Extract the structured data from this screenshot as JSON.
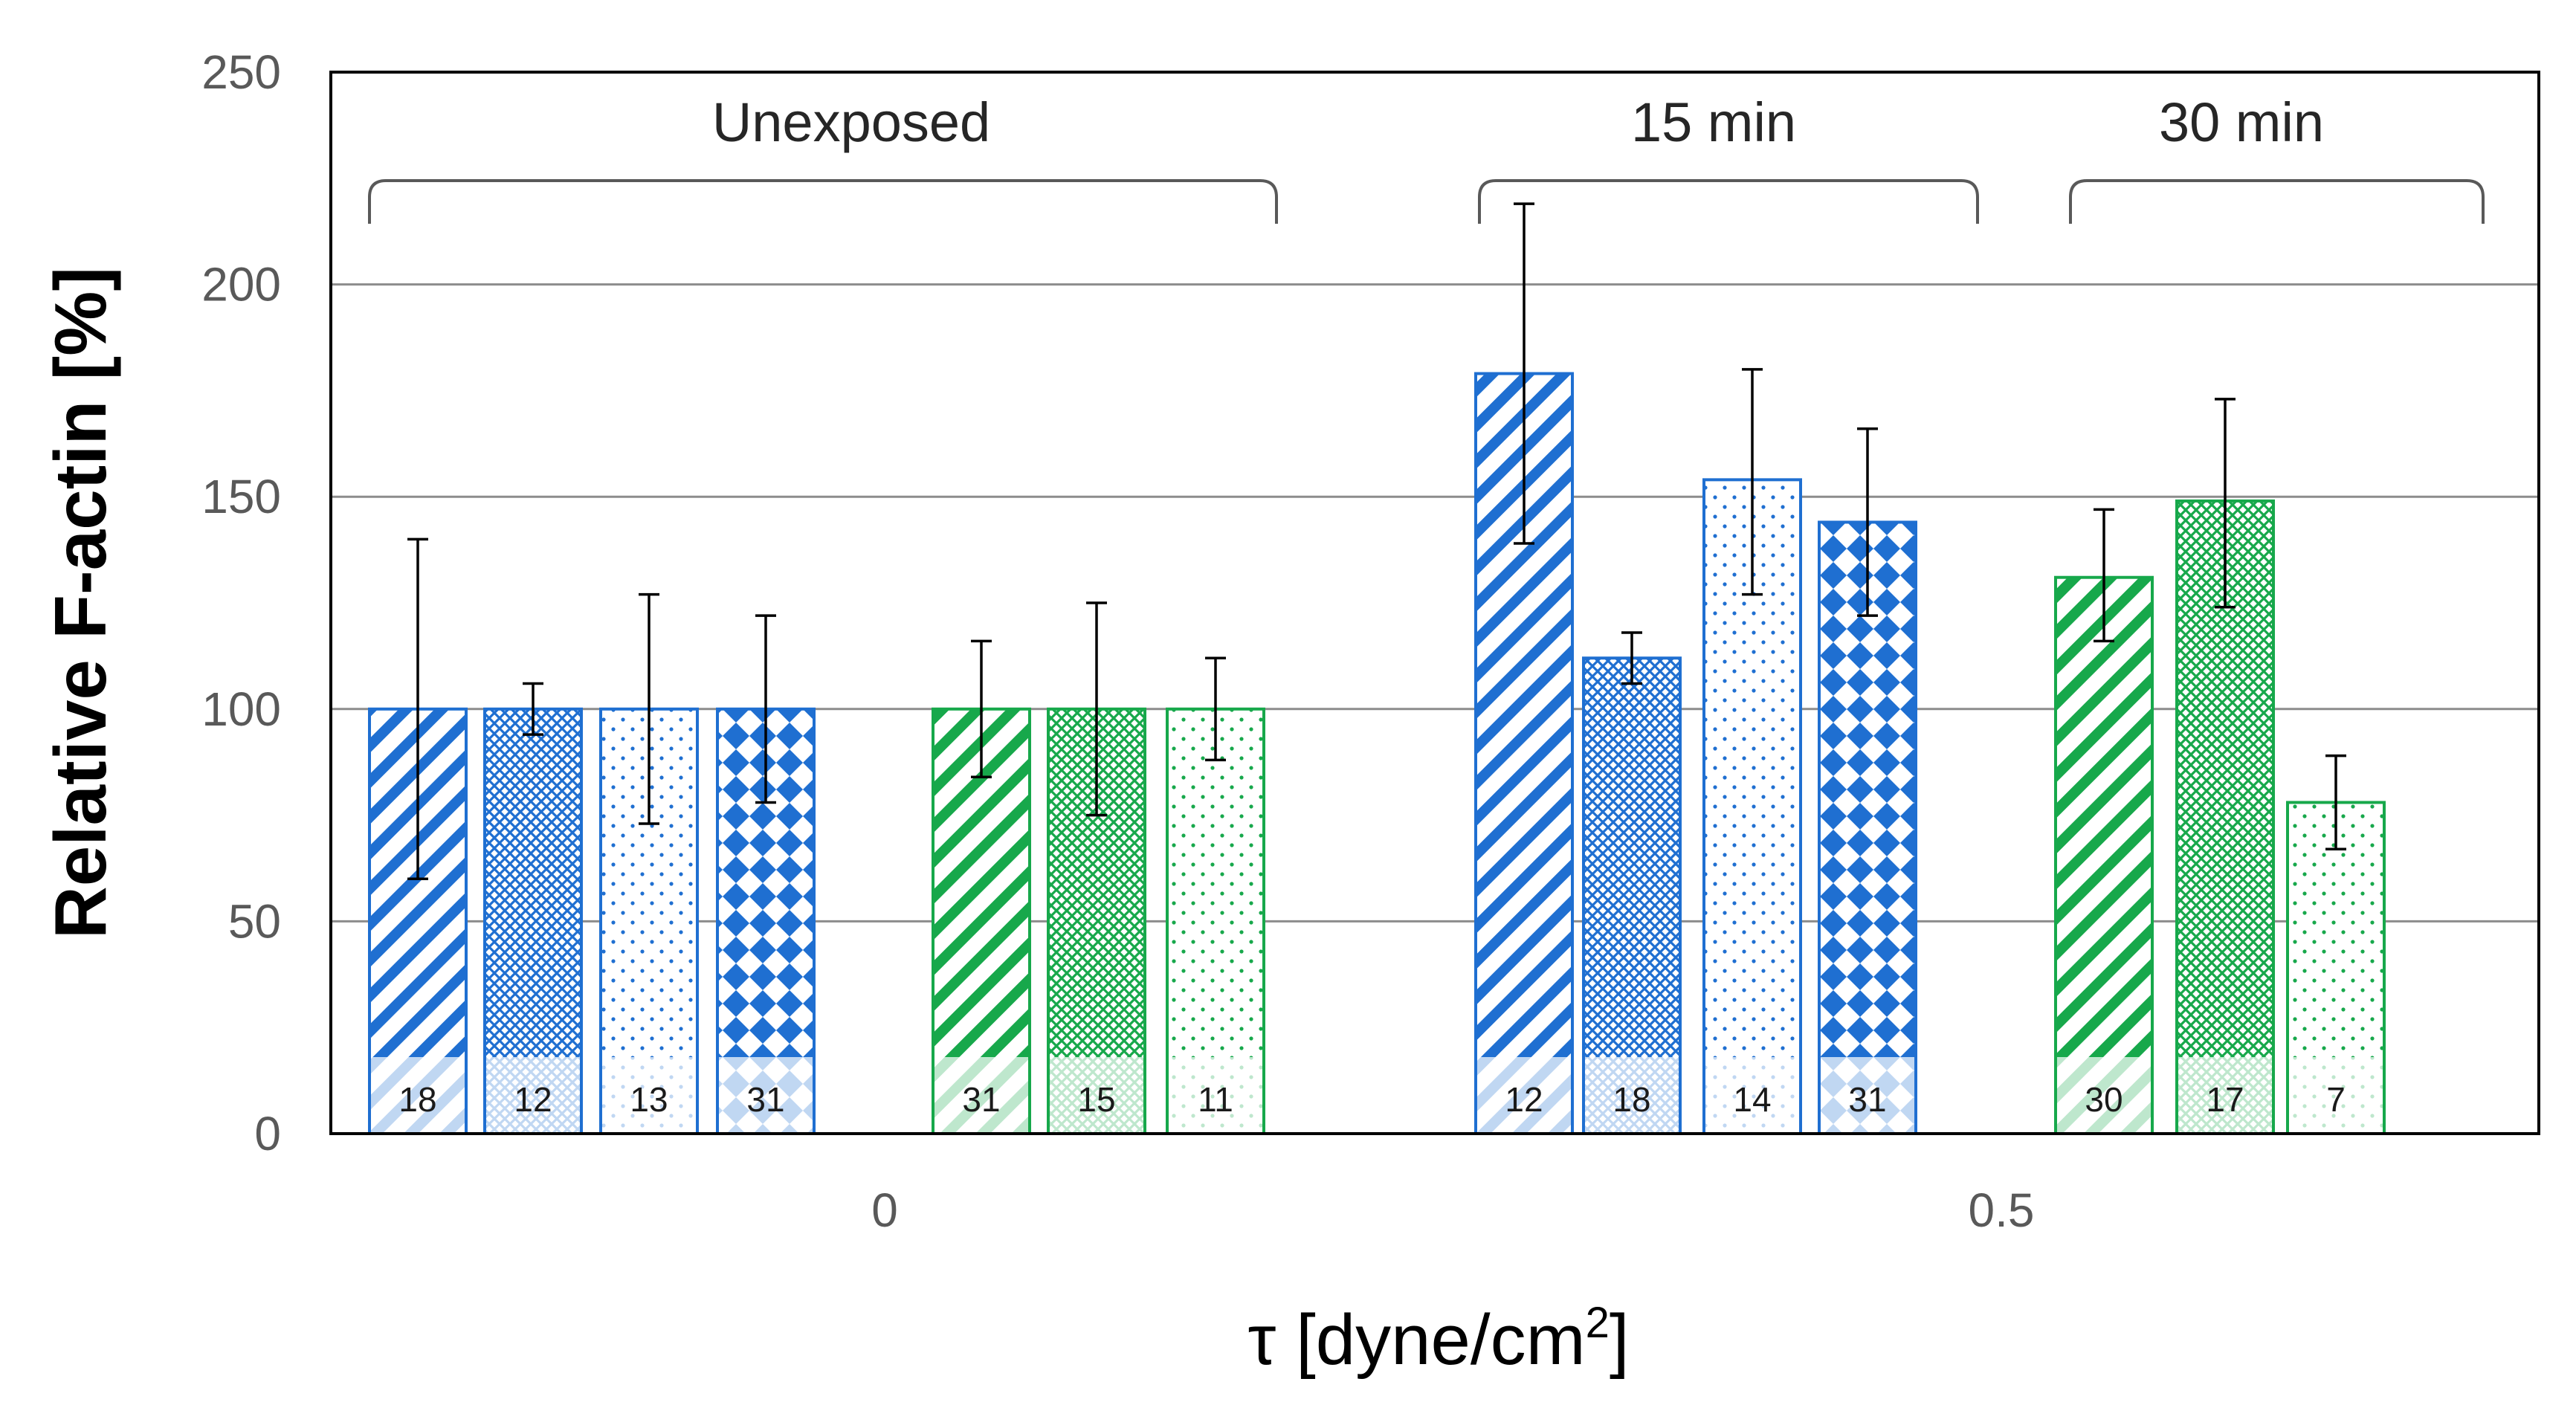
{
  "chart_data": {
    "type": "bar",
    "title": "",
    "xlabel": "τ [dyne/cm",
    "xlabel_superscript": "2",
    "xlabel_suffix": "]",
    "ylabel": "Relative F-actin [%]",
    "ylim": [
      0,
      250
    ],
    "yticks": [
      "0",
      "50",
      "100",
      "150",
      "200",
      "250"
    ],
    "xticks": [
      "0",
      "0.5"
    ],
    "grid": true,
    "colors": {
      "blue": "#1f6fd1",
      "green": "#17a84b",
      "axis": "#000000",
      "grid": "#8c8c8c",
      "error": "#000000"
    },
    "group_labels": [
      "Unexposed",
      "15 min",
      "30 min"
    ],
    "bars": [
      {
        "group": "Unexposed",
        "value": 100,
        "error_low": 60,
        "error_high": 140,
        "n": "18",
        "color": "blue",
        "pattern": "diag"
      },
      {
        "group": "Unexposed",
        "value": 100,
        "error_low": 94,
        "error_high": 106,
        "n": "12",
        "color": "blue",
        "pattern": "cross"
      },
      {
        "group": "Unexposed",
        "value": 100,
        "error_low": 73,
        "error_high": 127,
        "n": "13",
        "color": "blue",
        "pattern": "dots"
      },
      {
        "group": "Unexposed",
        "value": 100,
        "error_low": 78,
        "error_high": 122,
        "n": "31",
        "color": "blue",
        "pattern": "diamond"
      },
      {
        "group": "Unexposed",
        "value": 100,
        "error_low": 84,
        "error_high": 116,
        "n": "31",
        "color": "green",
        "pattern": "diag"
      },
      {
        "group": "Unexposed",
        "value": 100,
        "error_low": 75,
        "error_high": 125,
        "n": "15",
        "color": "green",
        "pattern": "cross"
      },
      {
        "group": "Unexposed",
        "value": 100,
        "error_low": 88,
        "error_high": 112,
        "n": "11",
        "color": "green",
        "pattern": "dots"
      },
      {
        "group": "15 min",
        "value": 179,
        "error_low": 139,
        "error_high": 219,
        "n": "12",
        "color": "blue",
        "pattern": "diag"
      },
      {
        "group": "15 min",
        "value": 112,
        "error_low": 106,
        "error_high": 118,
        "n": "18",
        "color": "blue",
        "pattern": "cross"
      },
      {
        "group": "15 min",
        "value": 154,
        "error_low": 127,
        "error_high": 180,
        "n": "14",
        "color": "blue",
        "pattern": "dots"
      },
      {
        "group": "15 min",
        "value": 144,
        "error_low": 122,
        "error_high": 166,
        "n": "31",
        "color": "blue",
        "pattern": "diamond"
      },
      {
        "group": "30 min",
        "value": 131,
        "error_low": 116,
        "error_high": 147,
        "n": "30",
        "color": "green",
        "pattern": "diag"
      },
      {
        "group": "30 min",
        "value": 149,
        "error_low": 124,
        "error_high": 173,
        "n": "17",
        "color": "green",
        "pattern": "cross"
      },
      {
        "group": "30 min",
        "value": 78,
        "error_low": 67,
        "error_high": 89,
        "n": "7",
        "color": "green",
        "pattern": "dots"
      }
    ]
  }
}
